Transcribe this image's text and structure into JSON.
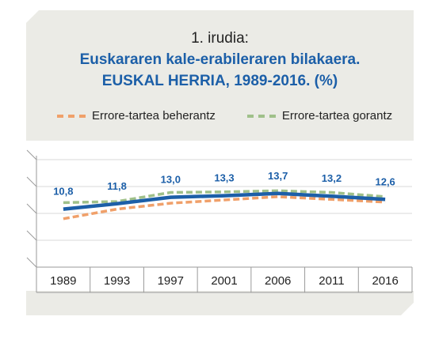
{
  "fig_label": "1. irudia:",
  "title_line1": "Euskararen kale-erabileraren bilakaera.",
  "title_line2": "EUSKAL HERRIA, 1989-2016. (%)",
  "colors": {
    "main": "#1c5fa8",
    "lower": "#f0a06a",
    "upper": "#9fc08a",
    "title": "#1c5fa8",
    "background": "#ebebe6"
  },
  "chart_data": {
    "type": "line",
    "title": "Euskararen kale-erabileraren bilakaera. EUSKAL HERRIA, 1989-2016. (%)",
    "categories": [
      "1989",
      "1993",
      "1997",
      "2001",
      "2006",
      "2011",
      "2016"
    ],
    "series": [
      {
        "name": "",
        "values": [
          10.8,
          11.8,
          13.0,
          13.3,
          13.7,
          13.2,
          12.6
        ],
        "data_labels": [
          "10,8",
          "11,8",
          "13,0",
          "13,3",
          "13,7",
          "13,2",
          "12,6"
        ]
      },
      {
        "name": "Errore-tartea beherantz",
        "values": [
          9.0,
          10.8,
          11.9,
          12.5,
          13.1,
          12.6,
          12.1
        ]
      },
      {
        "name": "Errore-tartea gorantz",
        "values": [
          12.0,
          12.2,
          13.9,
          14.0,
          14.2,
          13.9,
          13.1
        ]
      }
    ],
    "legend_position": "top",
    "grid": true
  }
}
